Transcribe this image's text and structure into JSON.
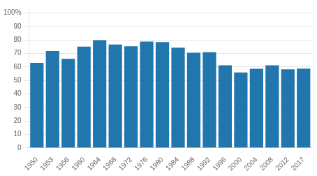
{
  "chart_data": {
    "type": "bar",
    "categories": [
      "1950",
      "1953",
      "1956",
      "1960",
      "1964",
      "1968",
      "1972",
      "1976",
      "1980",
      "1984",
      "1988",
      "1992",
      "1996",
      "2000",
      "2004",
      "2008",
      "2012",
      "2017"
    ],
    "values": [
      63.0,
      71.9,
      66.0,
      75.1,
      79.9,
      76.6,
      75.3,
      78.9,
      78.5,
      74.3,
      70.6,
      70.9,
      61.3,
      55.9,
      58.6,
      61.2,
      58.3,
      58.8
    ],
    "color": "#2176ae",
    "ylim": [
      0,
      105
    ],
    "yticks": [
      0,
      10,
      20,
      30,
      40,
      50,
      60,
      70,
      80,
      90,
      {
        "value": 100,
        "label": "100%"
      }
    ],
    "grid": true
  }
}
